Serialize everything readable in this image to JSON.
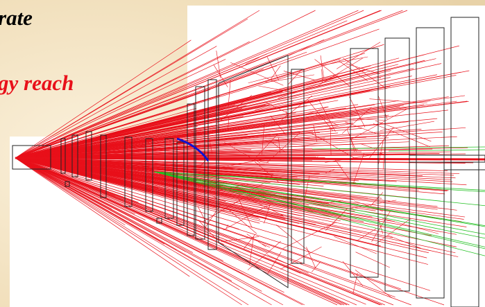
{
  "slide": {
    "heading_fragment": "rate",
    "subheading_fragment": "gy reach"
  }
}
